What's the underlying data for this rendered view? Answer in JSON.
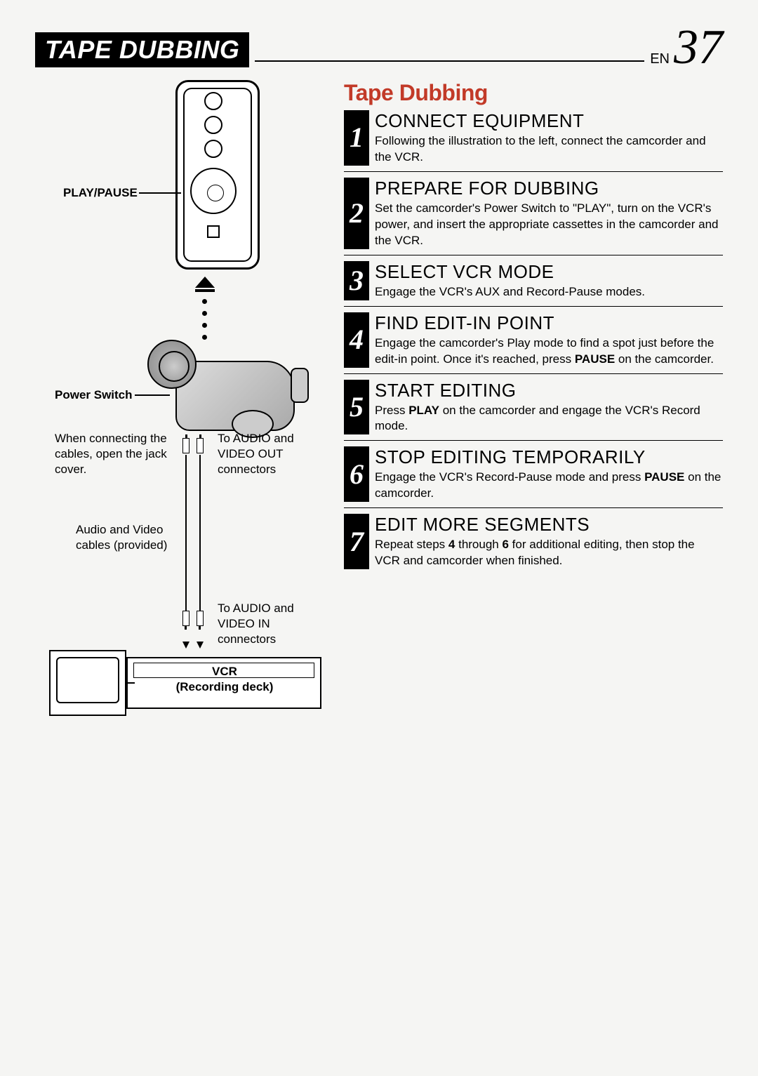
{
  "header": {
    "title": "TAPE DUBBING",
    "lang_code": "EN",
    "page_number": "37"
  },
  "section_title": "Tape Dubbing",
  "diagram_labels": {
    "play_pause": "PLAY/PAUSE",
    "power_switch": "Power Switch",
    "jack_cover_note": "When connecting the cables, open the jack cover.",
    "audio_video_out": "To AUDIO and VIDEO OUT connectors",
    "cables_provided": "Audio and Video cables (provided)",
    "audio_video_in": "To AUDIO and VIDEO IN connectors",
    "vcr_line1": "VCR",
    "vcr_line2": "(Recording deck)"
  },
  "steps": [
    {
      "num": "1",
      "title": "CONNECT EQUIPMENT",
      "body": "Following the illustration to the left, connect the camcorder and the VCR."
    },
    {
      "num": "2",
      "title": "PREPARE FOR DUBBING",
      "body": "Set the camcorder's Power Switch to \"PLAY\", turn on the VCR's power, and insert the appropriate cassettes in the camcorder and the VCR."
    },
    {
      "num": "3",
      "title": "SELECT VCR MODE",
      "body": "Engage the VCR's AUX and Record-Pause modes."
    },
    {
      "num": "4",
      "title": "FIND EDIT-IN POINT",
      "body_html": "Engage the camcorder's Play mode to find a spot just before the edit-in point. Once it's reached, press <strong>PAUSE</strong> on the camcorder."
    },
    {
      "num": "5",
      "title": "START EDITING",
      "body_html": "Press <strong>PLAY</strong> on the camcorder and engage the VCR's Record mode."
    },
    {
      "num": "6",
      "title": "STOP EDITING TEMPORARILY",
      "body_html": "Engage the VCR's Record-Pause mode and press <strong>PAUSE</strong> on the camcorder."
    },
    {
      "num": "7",
      "title": "EDIT MORE SEGMENTS",
      "body_html": "Repeat steps <strong>4</strong> through <strong>6</strong> for additional editing, then stop the VCR and camcorder when finished."
    }
  ],
  "colors": {
    "accent_red": "#c23a28",
    "black": "#000000",
    "page_bg": "#f5f5f3"
  }
}
